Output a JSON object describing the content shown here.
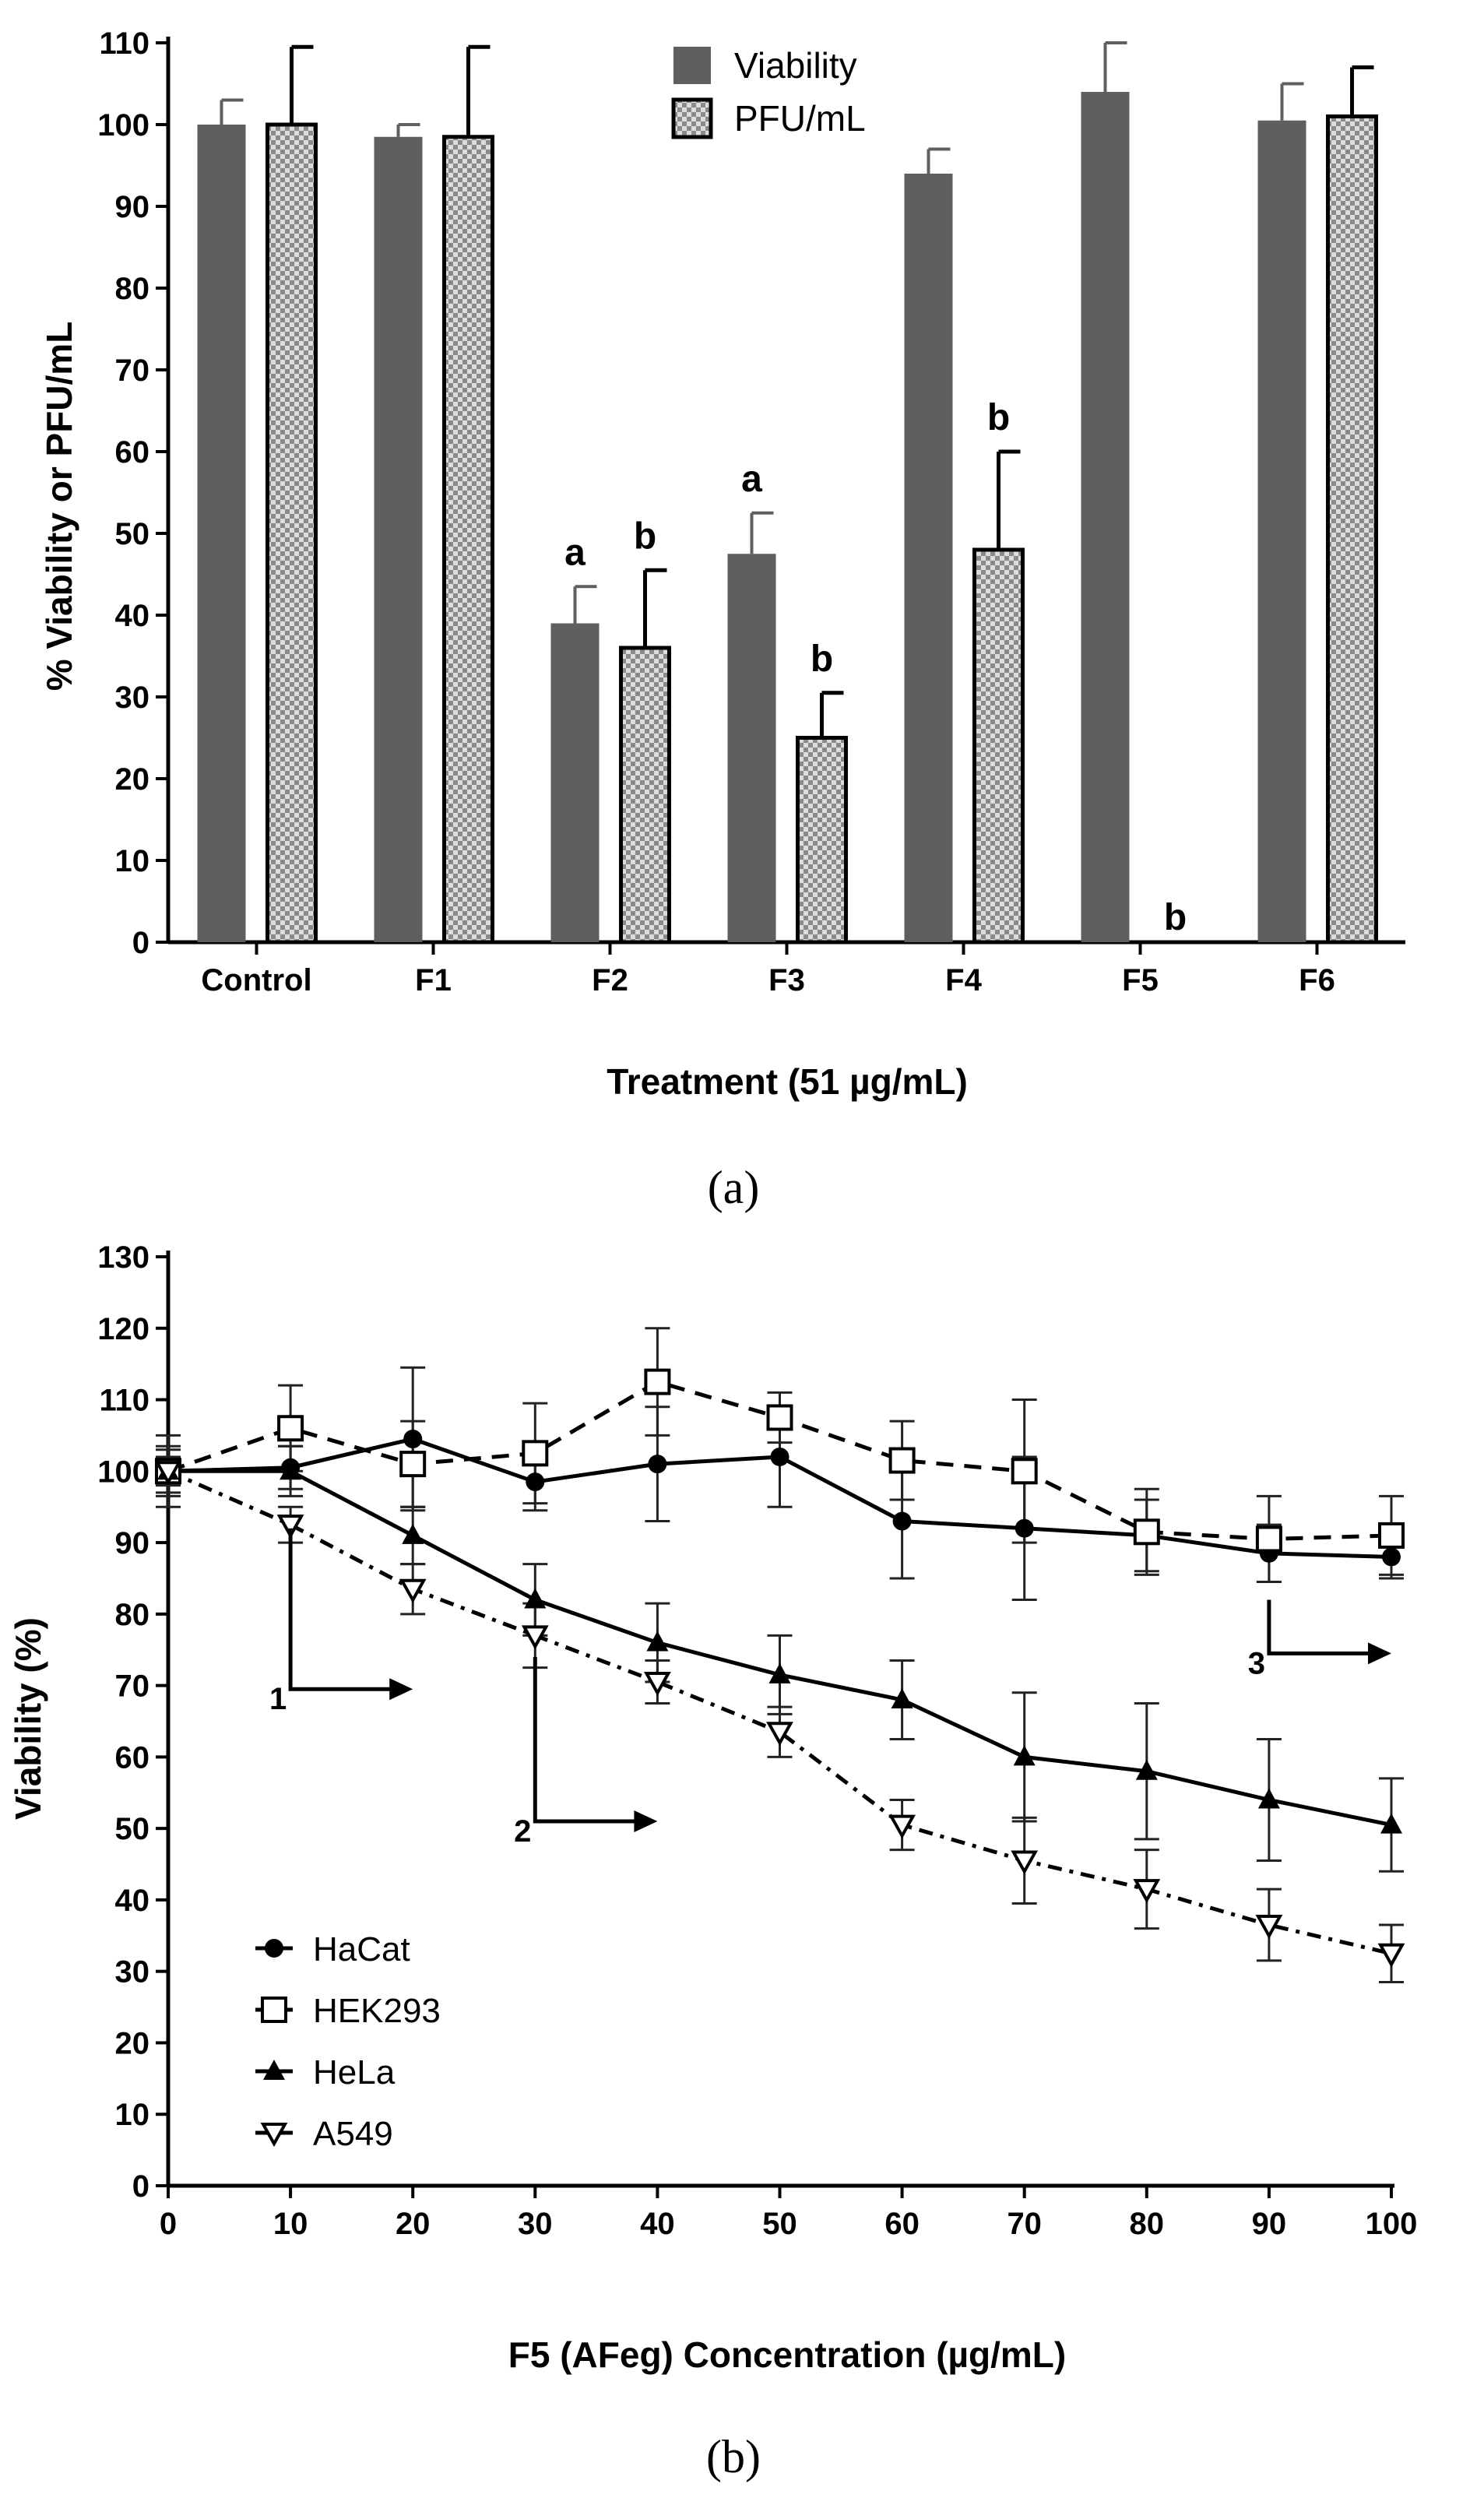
{
  "chart_data": [
    {
      "panel": "(a)",
      "type": "bar",
      "xlabel": "Treatment (51 µg/mL)",
      "ylabel": "% Viability or PFU/mL",
      "ylim": [
        0,
        110
      ],
      "yticks": [
        "0",
        "10",
        "20",
        "30",
        "40",
        "50",
        "60",
        "70",
        "80",
        "90",
        "100",
        "110"
      ],
      "categories": [
        "Control",
        "F1",
        "F2",
        "F3",
        "F4",
        "F5",
        "F6"
      ],
      "legend_position": "top-center",
      "series": [
        {
          "name": "Viability",
          "color": "#5f5f5f",
          "pattern": "solid",
          "values": [
            100,
            98.5,
            39,
            47.5,
            94,
            104,
            100.5
          ],
          "error": [
            3,
            1.5,
            4.5,
            5,
            3,
            6,
            4.5
          ],
          "labels": [
            "",
            "",
            "a",
            "a",
            "",
            "",
            ""
          ]
        },
        {
          "name": "PFU/mL",
          "color": "#9e9e9e",
          "pattern": "checkered",
          "values": [
            100,
            98.5,
            36,
            25,
            48,
            0,
            101
          ],
          "error": [
            9.5,
            11,
            9.5,
            5.5,
            12,
            0,
            6
          ],
          "labels": [
            "",
            "",
            "b",
            "b",
            "b",
            "b",
            ""
          ]
        }
      ]
    },
    {
      "panel": "(b)",
      "type": "line",
      "xlabel": "F5 (AFeg) Concentration (µg/mL)",
      "ylabel": "Viability (%)",
      "xlim": [
        0,
        100
      ],
      "ylim": [
        0,
        130
      ],
      "xticks": [
        "0",
        "10",
        "20",
        "30",
        "40",
        "50",
        "60",
        "70",
        "80",
        "90",
        "100"
      ],
      "yticks": [
        "0",
        "10",
        "20",
        "30",
        "40",
        "50",
        "60",
        "70",
        "80",
        "90",
        "100",
        "110",
        "120",
        "130"
      ],
      "x": [
        0,
        10,
        20,
        30,
        40,
        50,
        60,
        70,
        80,
        90,
        100
      ],
      "legend_position": "bottom-left",
      "series": [
        {
          "name": "HaCat",
          "marker": "filled-circle",
          "line": "solid",
          "values": [
            100,
            100.5,
            104.5,
            98.5,
            101,
            102,
            93,
            92,
            91,
            88.5,
            88
          ],
          "error": [
            3.5,
            3,
            10,
            4,
            8,
            7,
            8,
            10,
            5,
            4,
            3
          ]
        },
        {
          "name": "HEK293",
          "marker": "open-square",
          "line": "dashed",
          "values": [
            100,
            106,
            101,
            102.5,
            112.5,
            107.5,
            101.5,
            100,
            91.5,
            90.5,
            91
          ],
          "error": [
            5,
            6,
            6,
            7,
            7.5,
            3.5,
            5.5,
            10,
            6,
            6,
            5.5
          ]
        },
        {
          "name": "HeLa",
          "marker": "filled-triangle",
          "line": "solid",
          "values": [
            100,
            100,
            91,
            82,
            76,
            71.5,
            68,
            60,
            58,
            54,
            50.5
          ],
          "error": [
            3,
            3.5,
            4,
            5,
            5.5,
            5.5,
            5.5,
            9,
            9.5,
            8.5,
            6.5
          ]
        },
        {
          "name": "A549",
          "marker": "open-triangle-down",
          "line": "dash-dot",
          "values": [
            100,
            92.5,
            83.5,
            77,
            70.5,
            63.5,
            50.5,
            45.5,
            41.5,
            36.5,
            32.5
          ],
          "error": [
            2,
            2.5,
            3.5,
            4.5,
            3,
            3.5,
            3.5,
            6,
            5.5,
            5,
            4
          ]
        }
      ],
      "annotations": [
        {
          "label": "1",
          "x": 10,
          "y": 92,
          "y_end": 69.5,
          "x_end": 20
        },
        {
          "label": "2",
          "x": 30,
          "y": 74,
          "y_end": 51,
          "x_end": 40
        },
        {
          "label": "3",
          "x": 90,
          "y": 82,
          "y_end": 74.5,
          "x_end": 100
        }
      ]
    }
  ],
  "figure": {
    "panel_a_label": "(a)",
    "panel_b_label": "(b)"
  }
}
